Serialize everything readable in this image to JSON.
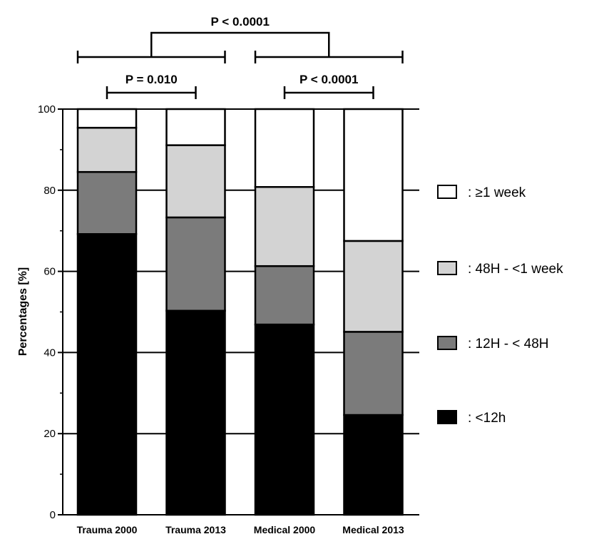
{
  "chart_data": {
    "type": "bar",
    "stacked": true,
    "title": "",
    "xlabel": "",
    "ylabel": "Percentages [%]",
    "ylim": [
      0,
      100
    ],
    "yticks": [
      0,
      20,
      40,
      60,
      80,
      100
    ],
    "grid": true,
    "categories": [
      "Trauma 2000",
      "Trauma 2013",
      "Medical 2000",
      "Medical 2013"
    ],
    "series": [
      {
        "name": ": <12h",
        "color": "#000000",
        "values": [
          69.2,
          50.3,
          46.9,
          24.6
        ]
      },
      {
        "name": ": 12H - < 48H",
        "color": "#7b7b7b",
        "values": [
          15.3,
          23.0,
          14.4,
          20.5
        ]
      },
      {
        "name": ": 48H - <1 week",
        "color": "#d3d3d3",
        "values": [
          10.9,
          17.8,
          19.5,
          22.4
        ]
      },
      {
        "name": ": ≥1 week",
        "color": "#ffffff",
        "values": [
          4.6,
          8.9,
          19.2,
          32.5
        ]
      }
    ],
    "legend_order": [
      3,
      2,
      1,
      0
    ],
    "legend_position": "right",
    "annotations": [
      {
        "text": "P = 0.010",
        "from": 0,
        "to": 1,
        "level": 1
      },
      {
        "text": "P < 0.0001",
        "from": 2,
        "to": 3,
        "level": 1
      },
      {
        "text": "P < 0.0001",
        "groupA": [
          0,
          1
        ],
        "groupB": [
          2,
          3
        ],
        "level": 2
      }
    ]
  }
}
